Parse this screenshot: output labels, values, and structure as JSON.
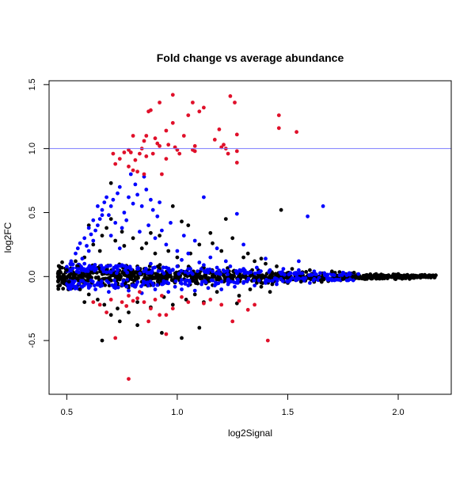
{
  "chart_data": {
    "type": "scatter",
    "title": "Fold change vs average abundance",
    "xlabel": "log2Signal",
    "ylabel": "log2FC",
    "xlim": [
      0.42,
      2.24
    ],
    "ylim": [
      -0.92,
      1.53
    ],
    "x_ticks": [
      0.5,
      1.0,
      1.5,
      2.0
    ],
    "y_ticks": [
      -0.5,
      0.0,
      0.5,
      1.0,
      1.5
    ],
    "x_tick_labels": [
      "0.5",
      "1.0",
      "1.5",
      "2.0"
    ],
    "y_tick_labels": [
      "-0.5",
      "0.0",
      "0.5",
      "1.0",
      "1.5"
    ],
    "grid": false,
    "legend": "none",
    "reference_line": {
      "orientation": "horizontal",
      "y": 1.0,
      "color": "#7b7bff"
    },
    "colors": {
      "black": "#000000",
      "blue": "#0000ff",
      "red": "#e0102a"
    },
    "series": [
      {
        "color": "red",
        "points": [
          [
            0.71,
            0.96
          ],
          [
            0.72,
            0.88
          ],
          [
            0.74,
            0.92
          ],
          [
            0.76,
            0.97
          ],
          [
            0.78,
            0.99
          ],
          [
            0.78,
            0.86
          ],
          [
            0.79,
            0.97
          ],
          [
            0.8,
            0.83
          ],
          [
            0.8,
            1.1
          ],
          [
            0.81,
            0.91
          ],
          [
            0.82,
            0.82
          ],
          [
            0.83,
            0.96
          ],
          [
            0.84,
            1.0
          ],
          [
            0.85,
            1.06
          ],
          [
            0.85,
            0.8
          ],
          [
            0.86,
            1.1
          ],
          [
            0.86,
            0.94
          ],
          [
            0.87,
            1.29
          ],
          [
            0.88,
            1.3
          ],
          [
            0.89,
            0.96
          ],
          [
            0.9,
            1.08
          ],
          [
            0.91,
            1.04
          ],
          [
            0.92,
            1.36
          ],
          [
            0.92,
            1.02
          ],
          [
            0.93,
            0.8
          ],
          [
            0.95,
            1.14
          ],
          [
            0.95,
            0.92
          ],
          [
            0.96,
            1.03
          ],
          [
            0.98,
            1.42
          ],
          [
            0.98,
            1.2
          ],
          [
            0.99,
            1.01
          ],
          [
            1.0,
            0.99
          ],
          [
            1.01,
            0.96
          ],
          [
            1.03,
            1.1
          ],
          [
            1.05,
            1.26
          ],
          [
            1.07,
            1.36
          ],
          [
            1.07,
            0.99
          ],
          [
            1.08,
            0.98
          ],
          [
            1.08,
            1.02
          ],
          [
            1.1,
            1.29
          ],
          [
            1.12,
            1.32
          ],
          [
            1.17,
            1.07
          ],
          [
            1.19,
            1.15
          ],
          [
            1.2,
            1.01
          ],
          [
            1.21,
            1.03
          ],
          [
            1.22,
            1.0
          ],
          [
            1.23,
            0.96
          ],
          [
            1.24,
            1.41
          ],
          [
            1.26,
            1.36
          ],
          [
            1.27,
            0.89
          ],
          [
            1.27,
            0.98
          ],
          [
            1.27,
            1.11
          ],
          [
            1.46,
            1.26
          ],
          [
            1.46,
            1.16
          ],
          [
            1.54,
            1.13
          ],
          [
            0.78,
            -0.8
          ],
          [
            0.62,
            -0.2
          ],
          [
            0.65,
            -0.22
          ],
          [
            0.68,
            -0.28
          ],
          [
            0.72,
            -0.48
          ],
          [
            0.75,
            -0.2
          ],
          [
            0.78,
            -0.15
          ],
          [
            0.8,
            -0.19
          ],
          [
            0.82,
            -0.17
          ],
          [
            0.85,
            -0.2
          ],
          [
            0.88,
            -0.25
          ],
          [
            0.9,
            -0.18
          ],
          [
            0.95,
            -0.3
          ],
          [
            0.98,
            -0.25
          ],
          [
            1.02,
            -0.16
          ],
          [
            1.05,
            -0.2
          ],
          [
            1.15,
            -0.18
          ],
          [
            1.2,
            -0.22
          ],
          [
            1.28,
            -0.19
          ],
          [
            1.32,
            -0.26
          ],
          [
            1.35,
            -0.22
          ],
          [
            0.95,
            -0.45
          ],
          [
            1.41,
            -0.5
          ],
          [
            0.87,
            -0.35
          ],
          [
            0.92,
            -0.3
          ],
          [
            1.25,
            -0.35
          ],
          [
            1.12,
            -0.21
          ],
          [
            0.7,
            -0.18
          ],
          [
            0.77,
            -0.23
          ],
          [
            0.83,
            -0.12
          ],
          [
            0.93,
            -0.15
          ]
        ]
      },
      {
        "color": "blue",
        "points": [
          [
            0.52,
            0.12
          ],
          [
            0.54,
            0.18
          ],
          [
            0.55,
            0.22
          ],
          [
            0.56,
            0.26
          ],
          [
            0.57,
            0.14
          ],
          [
            0.58,
            0.3
          ],
          [
            0.59,
            0.24
          ],
          [
            0.6,
            0.2
          ],
          [
            0.61,
            0.33
          ],
          [
            0.62,
            0.28
          ],
          [
            0.63,
            0.36
          ],
          [
            0.64,
            0.4
          ],
          [
            0.65,
            0.45
          ],
          [
            0.66,
            0.52
          ],
          [
            0.67,
            0.58
          ],
          [
            0.68,
            0.62
          ],
          [
            0.69,
            0.48
          ],
          [
            0.7,
            0.55
          ],
          [
            0.71,
            0.6
          ],
          [
            0.72,
            0.42
          ],
          [
            0.73,
            0.65
          ],
          [
            0.74,
            0.7
          ],
          [
            0.75,
            0.38
          ],
          [
            0.76,
            0.5
          ],
          [
            0.77,
            0.44
          ],
          [
            0.78,
            0.62
          ],
          [
            0.79,
            0.8
          ],
          [
            0.8,
            0.57
          ],
          [
            0.81,
            0.72
          ],
          [
            0.82,
            0.64
          ],
          [
            0.83,
            0.35
          ],
          [
            0.84,
            0.55
          ],
          [
            0.85,
            0.78
          ],
          [
            0.86,
            0.68
          ],
          [
            0.87,
            0.4
          ],
          [
            0.88,
            0.6
          ],
          [
            0.89,
            0.52
          ],
          [
            0.9,
            0.3
          ],
          [
            0.91,
            0.47
          ],
          [
            0.92,
            0.58
          ],
          [
            0.93,
            0.36
          ],
          [
            0.95,
            0.25
          ],
          [
            0.97,
            0.42
          ],
          [
            1.0,
            0.2
          ],
          [
            1.03,
            0.32
          ],
          [
            1.05,
            0.18
          ],
          [
            1.08,
            0.28
          ],
          [
            1.12,
            0.62
          ],
          [
            1.15,
            0.15
          ],
          [
            1.18,
            0.22
          ],
          [
            1.22,
            0.12
          ],
          [
            1.27,
            0.49
          ],
          [
            1.3,
            0.25
          ],
          [
            1.4,
            0.14
          ],
          [
            1.55,
            0.12
          ],
          [
            1.59,
            0.47
          ],
          [
            1.66,
            0.55
          ],
          [
            0.64,
            0.55
          ],
          [
            0.66,
            0.48
          ],
          [
            0.7,
            0.32
          ],
          [
            0.74,
            0.22
          ],
          [
            0.62,
            0.44
          ],
          [
            0.6,
            0.38
          ],
          [
            0.58,
            0.1
          ],
          [
            0.53,
            -0.05
          ],
          [
            0.57,
            -0.08
          ],
          [
            0.6,
            -0.06
          ],
          [
            0.63,
            -0.1
          ],
          [
            0.66,
            -0.07
          ],
          [
            0.69,
            -0.12
          ],
          [
            0.72,
            -0.09
          ],
          [
            0.75,
            -0.06
          ],
          [
            0.78,
            -0.11
          ],
          [
            0.81,
            -0.08
          ],
          [
            0.84,
            -0.13
          ],
          [
            0.87,
            -0.07
          ],
          [
            0.9,
            -0.1
          ],
          [
            0.93,
            -0.06
          ],
          [
            0.96,
            -0.12
          ],
          [
            0.99,
            -0.08
          ],
          [
            1.02,
            -0.1
          ],
          [
            1.05,
            -0.07
          ],
          [
            1.08,
            -0.11
          ],
          [
            1.11,
            -0.06
          ],
          [
            1.14,
            -0.09
          ],
          [
            1.17,
            -0.07
          ],
          [
            1.2,
            -0.1
          ],
          [
            1.23,
            -0.06
          ],
          [
            1.26,
            -0.08
          ],
          [
            1.3,
            -0.05
          ],
          [
            1.35,
            -0.07
          ],
          [
            1.4,
            -0.05
          ],
          [
            1.45,
            -0.06
          ],
          [
            1.5,
            -0.04
          ],
          [
            1.6,
            -0.05
          ],
          [
            1.7,
            -0.03
          ],
          [
            0.55,
            0.06
          ],
          [
            0.6,
            0.07
          ],
          [
            0.68,
            0.08
          ],
          [
            0.75,
            0.09
          ],
          [
            0.82,
            0.06
          ],
          [
            0.88,
            0.1
          ],
          [
            0.95,
            0.07
          ],
          [
            1.0,
            0.08
          ],
          [
            1.06,
            0.06
          ],
          [
            1.12,
            0.09
          ],
          [
            1.18,
            0.07
          ],
          [
            1.24,
            0.08
          ],
          [
            1.3,
            0.06
          ],
          [
            1.36,
            0.07
          ],
          [
            1.42,
            0.05
          ],
          [
            1.48,
            0.06
          ],
          [
            1.55,
            0.05
          ],
          [
            1.62,
            0.04
          ],
          [
            1.75,
            0.03
          ],
          [
            1.82,
            0.02
          ],
          [
            0.98,
            0.05
          ],
          [
            1.02,
            0.13
          ],
          [
            1.1,
            0.11
          ],
          [
            1.16,
            0.04
          ]
        ]
      },
      {
        "color": "black",
        "points": [
          [
            0.46,
            0.0
          ],
          [
            0.47,
            0.03
          ],
          [
            0.48,
            -0.03
          ],
          [
            0.5,
            0.05
          ],
          [
            0.51,
            -0.04
          ],
          [
            0.52,
            0.02
          ],
          [
            0.55,
            0.08
          ],
          [
            0.56,
            -0.1
          ],
          [
            0.58,
            0.15
          ],
          [
            0.6,
            -0.14
          ],
          [
            0.62,
            0.25
          ],
          [
            0.64,
            -0.18
          ],
          [
            0.65,
            0.2
          ],
          [
            0.66,
            0.32
          ],
          [
            0.67,
            -0.22
          ],
          [
            0.68,
            0.38
          ],
          [
            0.7,
            0.45
          ],
          [
            0.7,
            -0.3
          ],
          [
            0.72,
            0.28
          ],
          [
            0.73,
            -0.25
          ],
          [
            0.75,
            0.35
          ],
          [
            0.76,
            0.24
          ],
          [
            0.78,
            -0.28
          ],
          [
            0.8,
            0.3
          ],
          [
            0.82,
            -0.2
          ],
          [
            0.84,
            0.22
          ],
          [
            0.86,
            0.26
          ],
          [
            0.88,
            -0.24
          ],
          [
            0.9,
            0.18
          ],
          [
            0.92,
            0.32
          ],
          [
            0.94,
            -0.16
          ],
          [
            0.96,
            0.2
          ],
          [
            0.98,
            -0.22
          ],
          [
            1.0,
            0.15
          ],
          [
            1.02,
            0.43
          ],
          [
            1.04,
            -0.18
          ],
          [
            1.06,
            0.18
          ],
          [
            1.08,
            -0.14
          ],
          [
            1.1,
            0.25
          ],
          [
            1.12,
            -0.2
          ],
          [
            1.15,
            0.34
          ],
          [
            1.18,
            -0.12
          ],
          [
            1.2,
            0.2
          ],
          [
            1.22,
            0.45
          ],
          [
            1.25,
            0.3
          ],
          [
            1.28,
            -0.15
          ],
          [
            1.3,
            0.15
          ],
          [
            1.33,
            -0.1
          ],
          [
            1.35,
            0.12
          ],
          [
            1.38,
            -0.08
          ],
          [
            1.4,
            0.1
          ],
          [
            1.43,
            -0.06
          ],
          [
            1.47,
            0.52
          ],
          [
            1.45,
            0.08
          ],
          [
            1.5,
            -0.05
          ],
          [
            1.52,
            0.06
          ],
          [
            1.56,
            -0.04
          ],
          [
            1.6,
            0.05
          ],
          [
            1.65,
            -0.03
          ],
          [
            1.7,
            0.04
          ],
          [
            1.75,
            -0.02
          ],
          [
            1.8,
            0.03
          ],
          [
            1.85,
            -0.02
          ],
          [
            1.9,
            0.02
          ],
          [
            1.95,
            -0.01
          ],
          [
            2.0,
            0.02
          ],
          [
            2.05,
            -0.01
          ],
          [
            2.1,
            0.01
          ],
          [
            2.14,
            0.0
          ],
          [
            2.17,
            0.01
          ],
          [
            0.66,
            -0.5
          ],
          [
            0.7,
            0.73
          ],
          [
            0.93,
            -0.44
          ],
          [
            1.02,
            -0.48
          ],
          [
            0.82,
            -0.38
          ],
          [
            0.74,
            -0.35
          ],
          [
            1.1,
            -0.4
          ],
          [
            0.98,
            0.55
          ],
          [
            1.05,
            0.4
          ],
          [
            0.6,
            0.4
          ],
          [
            0.58,
            -0.2
          ],
          [
            0.54,
            0.12
          ],
          [
            0.88,
            0.34
          ],
          [
            1.16,
            0.26
          ],
          [
            1.32,
            0.18
          ],
          [
            1.27,
            -0.21
          ],
          [
            1.38,
            0.14
          ],
          [
            1.42,
            -0.12
          ]
        ]
      }
    ],
    "band": {
      "note": "dense core cloud rendered procedurally",
      "x_start": 0.46,
      "x_end": 2.17,
      "count": 900
    }
  }
}
